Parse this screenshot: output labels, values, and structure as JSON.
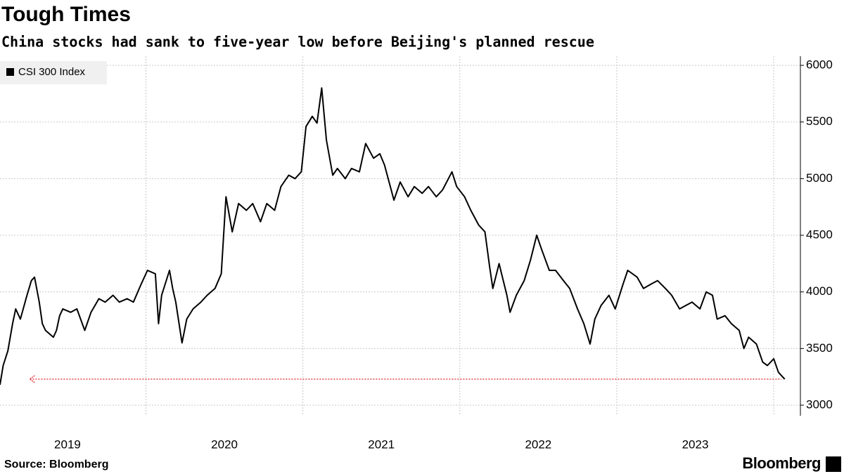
{
  "chart_data": {
    "type": "line",
    "title": "Tough Times",
    "subtitle": "China stocks had sank to five-year low before Beijing's planned rescue",
    "source": "Source: Bloomberg",
    "brand": "Bloomberg",
    "xlim": [
      2019.07,
      2024.17
    ],
    "ylim": [
      2907,
      6081
    ],
    "yticks": [
      3000,
      3500,
      4000,
      4500,
      5000,
      5500,
      6000
    ],
    "xgrid": [
      2020,
      2021,
      2022,
      2023,
      2024
    ],
    "xticks": [
      {
        "value": 2019.5,
        "label": "2019"
      },
      {
        "value": 2020.5,
        "label": "2020"
      },
      {
        "value": 2021.5,
        "label": "2021"
      },
      {
        "value": 2022.5,
        "label": "2022"
      },
      {
        "value": 2023.5,
        "label": "2023"
      }
    ],
    "grid": true,
    "legend": "top-left",
    "x": [
      2019.07,
      2019.09,
      2019.12,
      2019.15,
      2019.17,
      2019.2,
      2019.24,
      2019.27,
      2019.29,
      2019.32,
      2019.34,
      2019.36,
      2019.41,
      2019.43,
      2019.45,
      2019.47,
      2019.52,
      2019.56,
      2019.61,
      2019.65,
      2019.7,
      2019.74,
      2019.79,
      2019.83,
      2019.88,
      2019.92,
      2019.97,
      2020.01,
      2020.06,
      2020.08,
      2020.1,
      2020.15,
      2020.17,
      2020.19,
      2020.23,
      2020.26,
      2020.3,
      2020.35,
      2020.39,
      2020.44,
      2020.48,
      2020.51,
      2020.55,
      2020.59,
      2020.64,
      2020.68,
      2020.73,
      2020.77,
      2020.82,
      2020.86,
      2020.91,
      2020.95,
      2020.99,
      2021.02,
      2021.06,
      2021.09,
      2021.12,
      2021.15,
      2021.19,
      2021.22,
      2021.27,
      2021.31,
      2021.36,
      2021.4,
      2021.45,
      2021.49,
      2021.52,
      2021.58,
      2021.62,
      2021.67,
      2021.71,
      2021.76,
      2021.8,
      2021.85,
      2021.89,
      2021.95,
      2021.98,
      2022.03,
      2022.07,
      2022.12,
      2022.16,
      2022.19,
      2022.21,
      2022.25,
      2022.3,
      2022.32,
      2022.36,
      2022.41,
      2022.45,
      2022.49,
      2022.52,
      2022.57,
      2022.61,
      2022.66,
      2022.7,
      2022.75,
      2022.79,
      2022.83,
      2022.86,
      2022.9,
      2022.95,
      2022.99,
      2023.04,
      2023.07,
      2023.13,
      2023.17,
      2023.22,
      2023.26,
      2023.31,
      2023.35,
      2023.4,
      2023.44,
      2023.48,
      2023.53,
      2023.57,
      2023.61,
      2023.64,
      2023.69,
      2023.73,
      2023.78,
      2023.81,
      2023.84,
      2023.89,
      2023.93,
      2023.96,
      2024.0,
      2024.03,
      2024.07
    ],
    "series": [
      {
        "name": "CSI 300 Index",
        "color": "#000000",
        "values": [
          3180,
          3350,
          3480,
          3720,
          3850,
          3760,
          3960,
          4100,
          4130,
          3910,
          3720,
          3660,
          3600,
          3660,
          3790,
          3850,
          3820,
          3850,
          3660,
          3820,
          3940,
          3910,
          3970,
          3910,
          3940,
          3910,
          4070,
          4190,
          4160,
          3720,
          3970,
          4190,
          4030,
          3910,
          3550,
          3760,
          3850,
          3910,
          3970,
          4030,
          4160,
          4840,
          4530,
          4780,
          4720,
          4780,
          4620,
          4780,
          4720,
          4930,
          5030,
          5000,
          5060,
          5460,
          5550,
          5490,
          5800,
          5340,
          5030,
          5090,
          5000,
          5090,
          5060,
          5310,
          5180,
          5220,
          5120,
          4810,
          4970,
          4840,
          4930,
          4870,
          4930,
          4840,
          4900,
          5060,
          4930,
          4840,
          4720,
          4590,
          4530,
          4220,
          4030,
          4250,
          3970,
          3820,
          3970,
          4100,
          4280,
          4500,
          4380,
          4190,
          4190,
          4100,
          4030,
          3850,
          3720,
          3540,
          3760,
          3880,
          3970,
          3850,
          4070,
          4190,
          4130,
          4030,
          4070,
          4100,
          4030,
          3970,
          3850,
          3880,
          3910,
          3850,
          4000,
          3970,
          3760,
          3790,
          3720,
          3660,
          3500,
          3600,
          3540,
          3380,
          3350,
          3410,
          3290,
          3230
        ]
      }
    ],
    "annotation_line": {
      "y": 3230,
      "x": [
        2019.26,
        2024.05
      ],
      "color": "#e0464b"
    }
  }
}
